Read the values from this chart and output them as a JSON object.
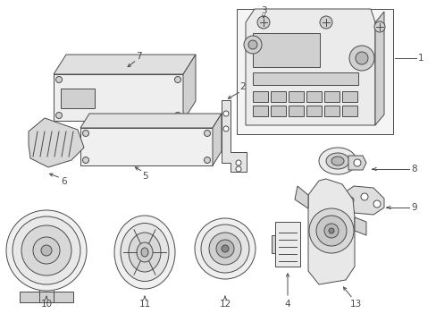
{
  "bg_color": "#ffffff",
  "lc": "#4a4a4a",
  "figsize": [
    4.89,
    3.6
  ],
  "dpi": 100,
  "lw": 0.7,
  "gray_fill": "#e8e8e8",
  "mid_fill": "#d0d0d0",
  "dark_fill": "#b8b8b8",
  "box_fill": "#f5f5f5"
}
